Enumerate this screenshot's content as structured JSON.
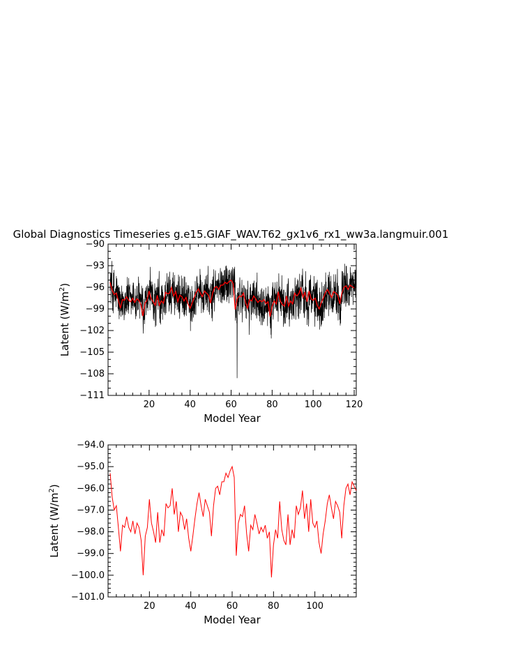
{
  "chart_data": [
    {
      "type": "line",
      "title": "Global Diagnostics Timeseries g.e15.GIAF_WAV.T62_gx1v6_rx1_ww3a.langmuir.001",
      "xlabel": "Model Year",
      "ylabel": "Latent (W/m",
      "ylabel_sup": "2",
      "ylabel_close": ")",
      "xlim": [
        0,
        121
      ],
      "ylim": [
        -111,
        -90
      ],
      "xticks": [
        20,
        40,
        60,
        80,
        100,
        120
      ],
      "xtick_labels": [
        "20",
        "40",
        "60",
        "80",
        "100",
        "120"
      ],
      "yticks": [
        -90,
        -93,
        -96,
        -99,
        -102,
        -105,
        -108,
        -111
      ],
      "ytick_labels": [
        "−90",
        "−93",
        "−96",
        "−99",
        "−102",
        "−105",
        "−108",
        "−111"
      ],
      "series": [
        {
          "name": "",
          "color": "#000000",
          "resolution": "monthly",
          "annual_mean_reference": "red series",
          "monthly_spread": 3.0,
          "min_marker": {
            "x": 62.9,
            "y": -108.6
          }
        },
        {
          "name": "",
          "color": "#ff0000",
          "resolution": "annual",
          "x_start": 1,
          "values": [
            -95.3,
            -96.4,
            -97.0,
            -96.8,
            -97.8,
            -98.9,
            -97.7,
            -97.8,
            -97.3,
            -97.8,
            -98.0,
            -97.5,
            -98.1,
            -97.6,
            -97.8,
            -98.4,
            -100.0,
            -98.2,
            -97.8,
            -96.5,
            -97.6,
            -98.0,
            -98.5,
            -97.1,
            -98.5,
            -97.9,
            -98.2,
            -96.7,
            -96.9,
            -96.8,
            -96.0,
            -97.2,
            -96.6,
            -98.0,
            -97.1,
            -97.3,
            -97.9,
            -97.4,
            -98.3,
            -98.9,
            -98.2,
            -97.4,
            -96.7,
            -96.2,
            -96.8,
            -97.3,
            -96.5,
            -96.8,
            -97.1,
            -98.2,
            -96.8,
            -96.0,
            -95.9,
            -96.3,
            -95.7,
            -95.7,
            -95.3,
            -95.5,
            -95.2,
            -95.0,
            -95.5,
            -99.1,
            -97.6,
            -97.2,
            -97.3,
            -96.8,
            -98.1,
            -98.9,
            -97.7,
            -97.9,
            -97.2,
            -97.6,
            -98.1,
            -97.8,
            -98.0,
            -97.7,
            -98.3,
            -98.0,
            -100.1,
            -98.6,
            -97.9,
            -98.3,
            -96.6,
            -97.9,
            -98.4,
            -98.6,
            -97.2,
            -98.6,
            -97.9,
            -98.3,
            -96.8,
            -97.2,
            -96.9,
            -96.1,
            -97.4,
            -96.7,
            -98.0,
            -96.5,
            -97.6,
            -97.8,
            -97.5,
            -98.5,
            -99.0,
            -98.1,
            -97.5,
            -96.7,
            -96.3,
            -96.9,
            -97.4,
            -96.6,
            -96.8,
            -97.1,
            -98.3,
            -96.8,
            -96.0,
            -95.8,
            -96.3,
            -95.7,
            -95.9,
            -96.1
          ]
        }
      ]
    },
    {
      "type": "line",
      "title": "",
      "xlabel": "Model Year",
      "ylabel": "Latent (W/m",
      "ylabel_sup": "2",
      "ylabel_close": ")",
      "xlim": [
        0,
        120
      ],
      "ylim": [
        -101,
        -94
      ],
      "xticks": [
        20,
        40,
        60,
        80,
        100
      ],
      "xtick_labels": [
        "20",
        "40",
        "60",
        "80",
        "100"
      ],
      "yticks": [
        -94,
        -95,
        -96,
        -97,
        -98,
        -99,
        -100,
        -101
      ],
      "ytick_labels": [
        "−94.0",
        "−95.0",
        "−96.0",
        "−97.0",
        "−98.0",
        "−99.0",
        "−100.0",
        "−101.0"
      ],
      "series": [
        {
          "name": "",
          "color": "#ff0000",
          "x_start": 1,
          "values": [
            -95.3,
            -96.4,
            -97.0,
            -96.8,
            -97.8,
            -98.9,
            -97.7,
            -97.8,
            -97.3,
            -97.8,
            -98.0,
            -97.5,
            -98.1,
            -97.6,
            -97.8,
            -98.4,
            -100.0,
            -98.2,
            -97.8,
            -96.5,
            -97.6,
            -98.0,
            -98.5,
            -97.1,
            -98.5,
            -97.9,
            -98.2,
            -96.7,
            -96.9,
            -96.8,
            -96.0,
            -97.2,
            -96.6,
            -98.0,
            -97.1,
            -97.3,
            -97.9,
            -97.4,
            -98.3,
            -98.9,
            -98.2,
            -97.4,
            -96.7,
            -96.2,
            -96.8,
            -97.3,
            -96.5,
            -96.8,
            -97.1,
            -98.2,
            -96.8,
            -96.0,
            -95.9,
            -96.3,
            -95.7,
            -95.7,
            -95.3,
            -95.5,
            -95.2,
            -95.0,
            -95.5,
            -99.1,
            -97.6,
            -97.2,
            -97.3,
            -96.8,
            -98.1,
            -98.9,
            -97.7,
            -97.9,
            -97.2,
            -97.6,
            -98.1,
            -97.8,
            -98.0,
            -97.7,
            -98.3,
            -98.0,
            -100.1,
            -98.6,
            -97.9,
            -98.3,
            -96.6,
            -97.9,
            -98.4,
            -98.6,
            -97.2,
            -98.6,
            -97.9,
            -98.3,
            -96.8,
            -97.2,
            -96.9,
            -96.1,
            -97.4,
            -96.7,
            -98.0,
            -96.5,
            -97.6,
            -97.8,
            -97.5,
            -98.5,
            -99.0,
            -98.1,
            -97.5,
            -96.7,
            -96.3,
            -96.9,
            -97.4,
            -96.6,
            -96.8,
            -97.1,
            -98.3,
            -96.8,
            -96.0,
            -95.8,
            -96.3,
            -95.7,
            -95.9,
            -96.1
          ]
        }
      ]
    }
  ]
}
